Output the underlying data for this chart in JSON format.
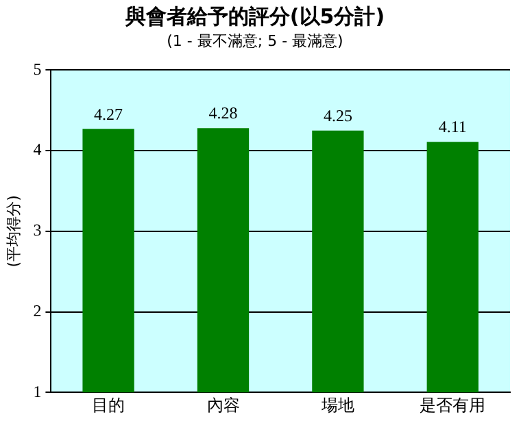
{
  "chart_data": {
    "type": "bar",
    "title": "與會者給予的評分(以5分計)",
    "subtitle": "(1 - 最不滿意; 5 - 最滿意)",
    "ylabel": "(平均得分)",
    "categories": [
      "目的",
      "內容",
      "場地",
      "是否有用"
    ],
    "values": [
      4.27,
      4.28,
      4.25,
      4.11
    ],
    "color": "#008000",
    "ylim": [
      1,
      5
    ],
    "yticks": [
      1,
      2,
      3,
      4,
      5
    ],
    "grid": "y",
    "data_labels": true
  }
}
